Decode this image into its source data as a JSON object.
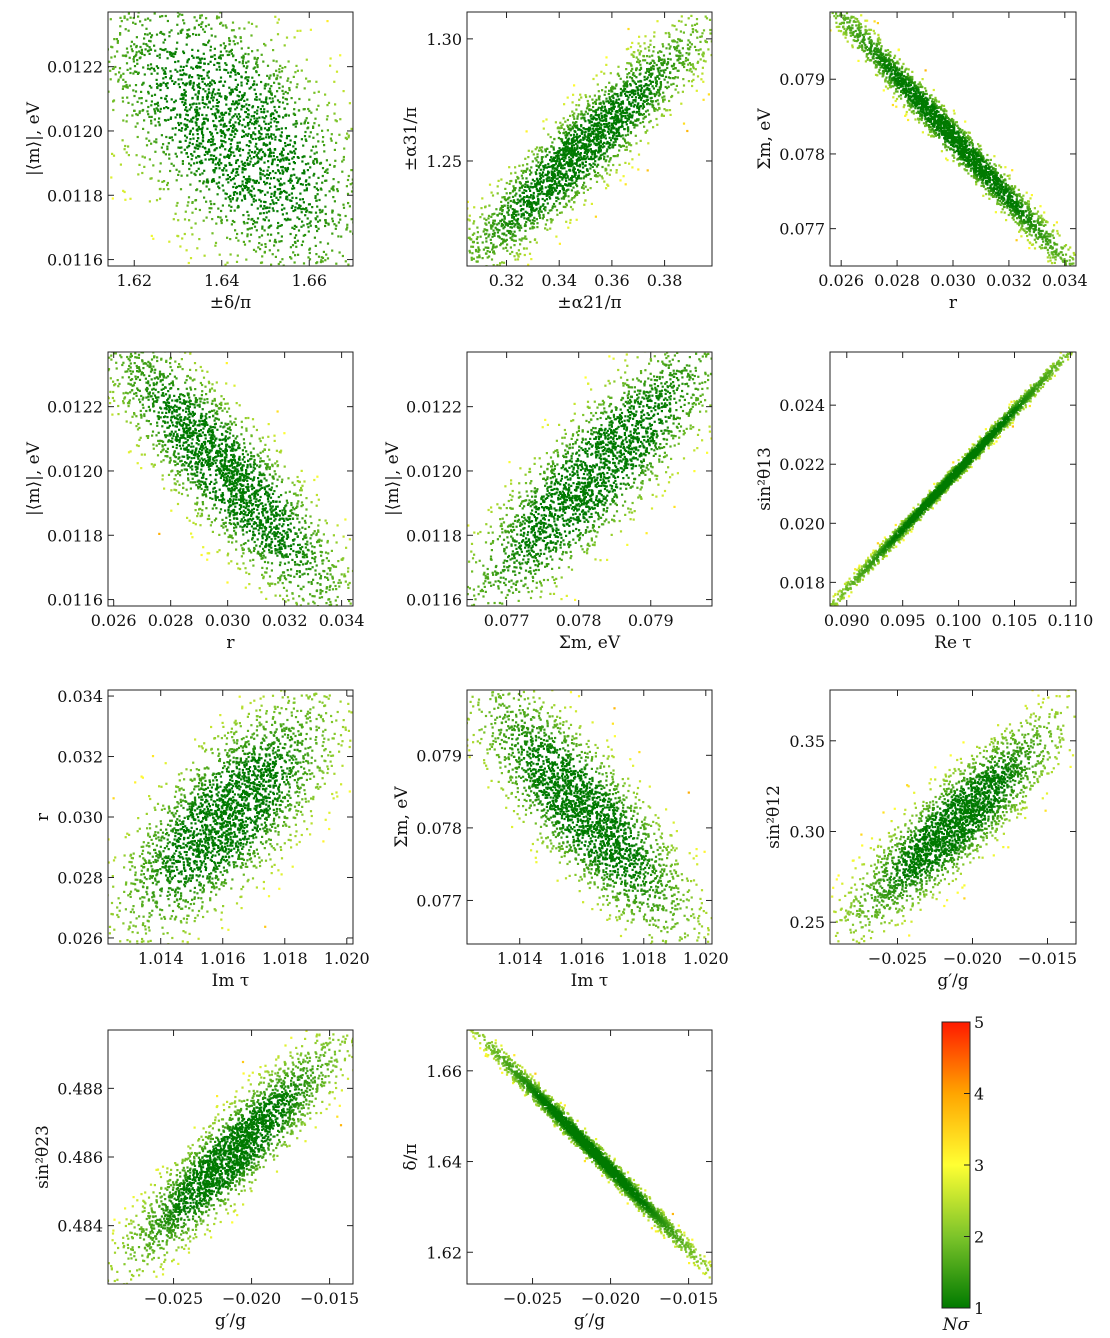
{
  "colorbar": {
    "label": "Nσ",
    "ticks": [
      "1",
      "2",
      "3",
      "4",
      "5"
    ],
    "range": [
      1,
      5
    ],
    "colors": [
      "#007a00",
      "#7cc42a",
      "#ffff33",
      "#ffa500",
      "#ff1a00"
    ]
  },
  "chart_data": [
    {
      "type": "scatter",
      "xlabel": "±δ/π",
      "ylabel": "|⟨m⟩|, eV",
      "xlim": [
        1.614,
        1.67
      ],
      "ylim": [
        0.01158,
        0.01237
      ],
      "xticks": [
        1.62,
        1.64,
        1.66
      ],
      "xtick_labels": [
        "1.62",
        "1.64",
        "1.66"
      ],
      "yticks": [
        0.0116,
        0.0118,
        0.012,
        0.0122
      ],
      "ytick_labels": [
        "0.0116",
        "0.0118",
        "0.0120",
        "0.0122"
      ],
      "center": [
        1.643,
        0.01199
      ],
      "spread": [
        0.016,
        0.00024
      ],
      "correlation": -0.62
    },
    {
      "type": "scatter",
      "xlabel": "±α21/π",
      "ylabel": "±α31/π",
      "xlim": [
        0.305,
        0.398
      ],
      "ylim": [
        1.207,
        1.311
      ],
      "xticks": [
        0.32,
        0.34,
        0.36,
        0.38
      ],
      "xtick_labels": [
        "0.32",
        "0.34",
        "0.36",
        "0.38"
      ],
      "yticks": [
        1.25,
        1.3
      ],
      "ytick_labels": [
        "1.25",
        "1.30"
      ],
      "center": [
        0.349,
        1.255
      ],
      "spread": [
        0.024,
        0.026
      ],
      "correlation": 0.93
    },
    {
      "type": "scatter",
      "xlabel": "r",
      "ylabel": "Σm, eV",
      "xlim": [
        0.0256,
        0.0344
      ],
      "ylim": [
        0.0765,
        0.0799
      ],
      "xticks": [
        0.026,
        0.028,
        0.03,
        0.032,
        0.034
      ],
      "xtick_labels": [
        "0.026",
        "0.028",
        "0.030",
        "0.032",
        "0.034"
      ],
      "yticks": [
        0.077,
        0.078,
        0.079
      ],
      "ytick_labels": [
        "0.077",
        "0.078",
        "0.079"
      ],
      "center": [
        0.03,
        0.07822
      ],
      "spread": [
        0.0023,
        0.00094
      ],
      "correlation": -0.99
    },
    {
      "type": "scatter",
      "xlabel": "r",
      "ylabel": "|⟨m⟩|, eV",
      "xlim": [
        0.0258,
        0.0344
      ],
      "ylim": [
        0.01158,
        0.01237
      ],
      "xticks": [
        0.026,
        0.028,
        0.03,
        0.032,
        0.034
      ],
      "xtick_labels": [
        "0.026",
        "0.028",
        "0.030",
        "0.032",
        "0.034"
      ],
      "yticks": [
        0.0116,
        0.0118,
        0.012,
        0.0122
      ],
      "ytick_labels": [
        "0.0116",
        "0.0118",
        "0.0120",
        "0.0122"
      ],
      "center": [
        0.03,
        0.01199
      ],
      "spread": [
        0.0022,
        0.00023
      ],
      "correlation": -0.88
    },
    {
      "type": "scatter",
      "xlabel": "Σm, eV",
      "ylabel": "|⟨m⟩|, eV",
      "xlim": [
        0.07645,
        0.07985
      ],
      "ylim": [
        0.01158,
        0.01237
      ],
      "xticks": [
        0.077,
        0.078,
        0.079
      ],
      "xtick_labels": [
        "0.077",
        "0.078",
        "0.079"
      ],
      "yticks": [
        0.0116,
        0.0118,
        0.012,
        0.0122
      ],
      "ytick_labels": [
        "0.0116",
        "0.0118",
        "0.0120",
        "0.0122"
      ],
      "center": [
        0.07822,
        0.01199
      ],
      "spread": [
        0.00094,
        0.00023
      ],
      "correlation": 0.88
    },
    {
      "type": "scatter",
      "xlabel": "Re τ",
      "ylabel": "sin²θ13",
      "xlim": [
        0.0885,
        0.1105
      ],
      "ylim": [
        0.0172,
        0.0258
      ],
      "xticks": [
        0.09,
        0.095,
        0.1,
        0.105,
        0.11
      ],
      "xtick_labels": [
        "0.090",
        "0.095",
        "0.100",
        "0.105",
        "0.110"
      ],
      "yticks": [
        0.018,
        0.02,
        0.022,
        0.024
      ],
      "ytick_labels": [
        "0.018",
        "0.020",
        "0.022",
        "0.024"
      ],
      "center": [
        0.0995,
        0.0216
      ],
      "spread": [
        0.0052,
        0.0021
      ],
      "correlation": 0.998
    },
    {
      "type": "scatter",
      "xlabel": "Im τ",
      "ylabel": "r",
      "xlim": [
        1.0123,
        1.0202
      ],
      "ylim": [
        0.0258,
        0.0342
      ],
      "xticks": [
        1.014,
        1.016,
        1.018,
        1.02
      ],
      "xtick_labels": [
        "1.014",
        "1.016",
        "1.018",
        "1.020"
      ],
      "yticks": [
        0.026,
        0.028,
        0.03,
        0.032,
        0.034
      ],
      "ytick_labels": [
        "0.026",
        "0.028",
        "0.030",
        "0.032",
        "0.034"
      ],
      "center": [
        1.0161,
        0.03
      ],
      "spread": [
        0.0017,
        0.0019
      ],
      "correlation": 0.72
    },
    {
      "type": "scatter",
      "xlabel": "Im τ",
      "ylabel": "Σm, eV",
      "xlim": [
        1.0123,
        1.0202
      ],
      "ylim": [
        0.0764,
        0.0799
      ],
      "xticks": [
        1.014,
        1.016,
        1.018,
        1.02
      ],
      "xtick_labels": [
        "1.014",
        "1.016",
        "1.018",
        "1.020"
      ],
      "yticks": [
        0.077,
        0.078,
        0.079
      ],
      "ytick_labels": [
        "0.077",
        "0.078",
        "0.079"
      ],
      "center": [
        1.0161,
        0.07822
      ],
      "spread": [
        0.0017,
        0.00085
      ],
      "correlation": -0.82
    },
    {
      "type": "scatter",
      "xlabel": "g′/g",
      "ylabel": "sin²θ12",
      "xlim": [
        -0.0295,
        -0.0131
      ],
      "ylim": [
        0.238,
        0.378
      ],
      "xticks": [
        -0.025,
        -0.02,
        -0.015
      ],
      "xtick_labels": [
        "−0.025",
        "−0.020",
        "−0.015"
      ],
      "yticks": [
        0.25,
        0.3,
        0.35
      ],
      "ytick_labels": [
        "0.25",
        "0.30",
        "0.35"
      ],
      "center": [
        -0.0212,
        0.3045
      ],
      "spread": [
        0.0034,
        0.028
      ],
      "correlation": 0.88
    },
    {
      "type": "scatter",
      "xlabel": "g′/g",
      "ylabel": "sin²θ23",
      "xlim": [
        -0.0292,
        -0.0135
      ],
      "ylim": [
        0.4823,
        0.4897
      ],
      "xticks": [
        -0.025,
        -0.02,
        -0.015
      ],
      "xtick_labels": [
        "−0.025",
        "−0.020",
        "−0.015"
      ],
      "yticks": [
        0.484,
        0.486,
        0.488
      ],
      "ytick_labels": [
        "0.484",
        "0.486",
        "0.488"
      ],
      "center": [
        -0.0212,
        0.4861
      ],
      "spread": [
        0.0034,
        0.0016
      ],
      "correlation": 0.91
    },
    {
      "type": "scatter",
      "xlabel": "g′/g",
      "ylabel": "δ/π",
      "xlim": [
        -0.0292,
        -0.0135
      ],
      "ylim": [
        1.613,
        1.669
      ],
      "xticks": [
        -0.025,
        -0.02,
        -0.015
      ],
      "xtick_labels": [
        "−0.025",
        "−0.020",
        "−0.015"
      ],
      "yticks": [
        1.62,
        1.64,
        1.66
      ],
      "ytick_labels": [
        "1.62",
        "1.64",
        "1.66"
      ],
      "center": [
        -0.0212,
        1.6425
      ],
      "spread": [
        0.0034,
        0.012
      ],
      "correlation": -0.995
    }
  ]
}
